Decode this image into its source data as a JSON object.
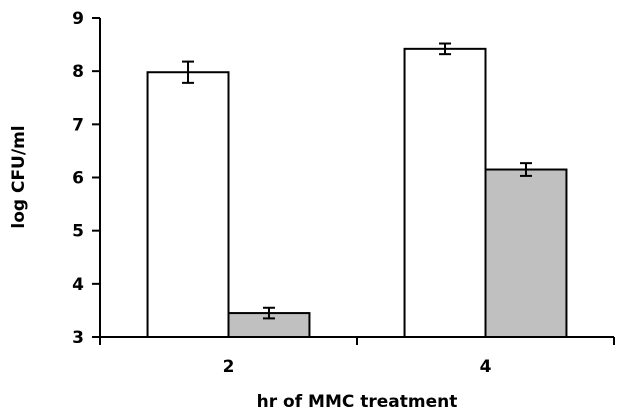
{
  "chart_data": {
    "type": "bar",
    "title": "",
    "xlabel": "hr of MMC treatment",
    "ylabel": "log CFU/ml",
    "categories": [
      "2",
      "4"
    ],
    "ylim": [
      3,
      9
    ],
    "yticks": [
      "3",
      "4",
      "5",
      "6",
      "7",
      "8",
      "9"
    ],
    "grid": false,
    "legend": "none",
    "series": [
      {
        "values": [
          7.98,
          8.42
        ],
        "errors": [
          0.2,
          0.1
        ],
        "color": "#ffffff"
      },
      {
        "values": [
          3.45,
          6.15
        ],
        "errors": [
          0.1,
          0.12
        ],
        "color": "#c0c0c0"
      }
    ]
  }
}
